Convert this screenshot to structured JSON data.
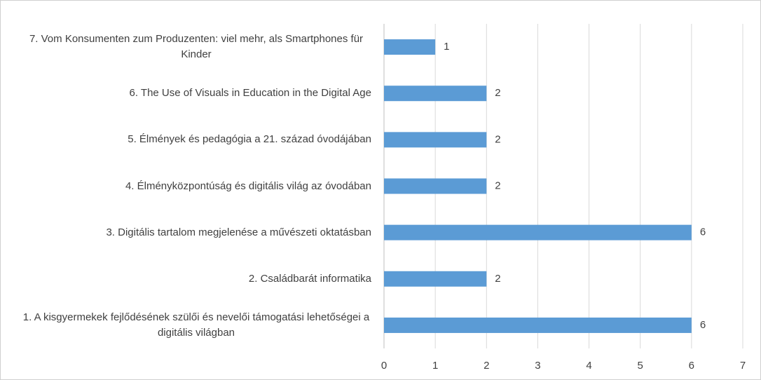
{
  "chart_data": {
    "type": "bar",
    "orientation": "horizontal",
    "categories": [
      "1. A kisgyermekek fejlődésének szülői és nevelői támogatási lehetőségei a digitális világban",
      "2. Családbarát informatika",
      "3. Digitális tartalom megjelenése a művészeti oktatásban",
      "4. Élményközpontúság és digitális világ az óvodában",
      "5. Élmények és pedagógia a 21. század óvodájában",
      "6. The Use of Visuals in Education in the Digital Age",
      "7. Vom Konsumenten zum Produzenten: viel mehr, als Smartphones für Kinder"
    ],
    "values": [
      6,
      2,
      6,
      2,
      2,
      2,
      1
    ],
    "color": "#5b9bd5",
    "xlim": [
      0,
      7
    ],
    "xticks": [
      0,
      1,
      2,
      3,
      4,
      5,
      6,
      7
    ],
    "grid": true
  }
}
